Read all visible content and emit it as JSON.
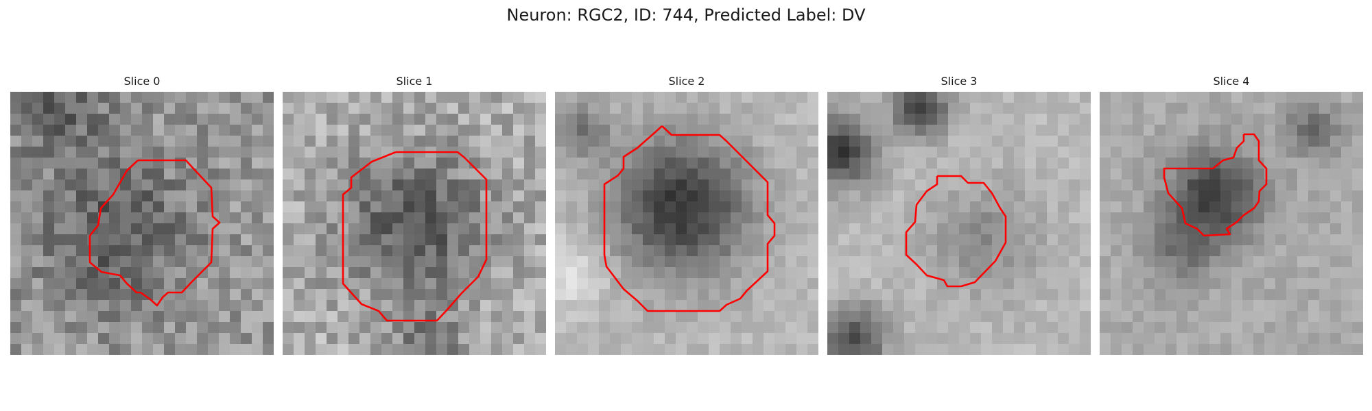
{
  "figure": {
    "title": "Neuron: RGC2, ID: 744, Predicted Label: DV",
    "contour_color": "#ff0000"
  },
  "panels": [
    {
      "title": "Slice 0",
      "pattern": "noise-bright-center-dark-ring"
    },
    {
      "title": "Slice 1",
      "pattern": "noise-gray-blob"
    },
    {
      "title": "Slice 2",
      "pattern": "dark-cell-bright-corners"
    },
    {
      "title": "Slice 3",
      "pattern": "smooth-blobs-light-cell"
    },
    {
      "title": "Slice 4",
      "pattern": "smooth-dark-center"
    }
  ]
}
